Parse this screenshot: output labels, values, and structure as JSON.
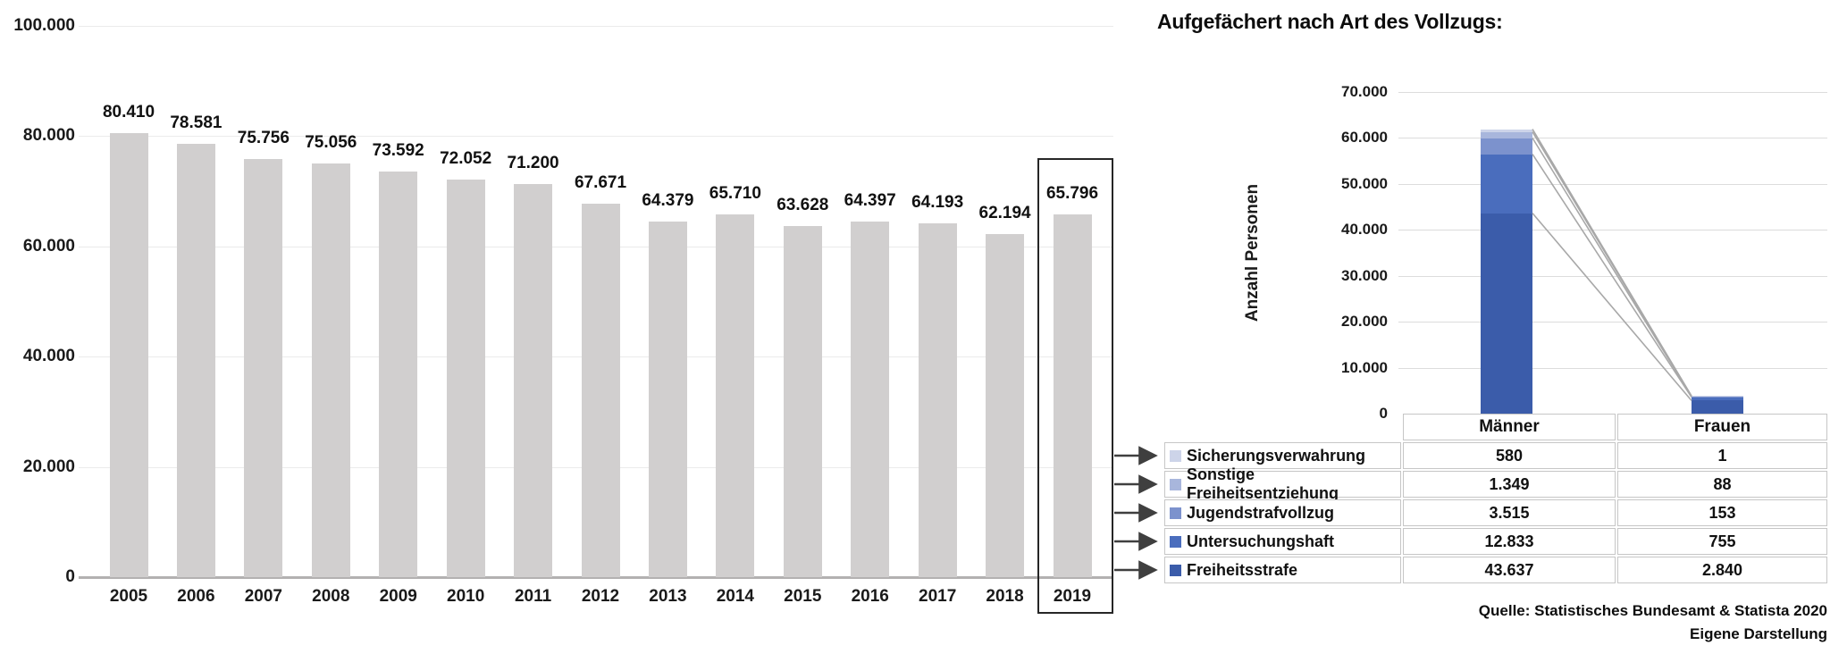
{
  "source": {
    "line1": "Quelle: Statistisches Bundesamt & Statista 2020",
    "line2": "Eigene Darstellung"
  },
  "chart_data": [
    {
      "type": "bar",
      "name": "gefangene-pro-jahr",
      "categories": [
        "2005",
        "2006",
        "2007",
        "2008",
        "2009",
        "2010",
        "2011",
        "2012",
        "2013",
        "2014",
        "2015",
        "2016",
        "2017",
        "2018",
        "2019"
      ],
      "values": [
        80410,
        78581,
        75756,
        75056,
        73592,
        72052,
        71200,
        67671,
        64379,
        65710,
        63628,
        64397,
        64193,
        62194,
        65796
      ],
      "value_labels": [
        "80.410",
        "78.581",
        "75.756",
        "75.056",
        "73.592",
        "72.052",
        "71.200",
        "67.671",
        "64.379",
        "65.710",
        "63.628",
        "64.397",
        "64.193",
        "62.194",
        "65.796"
      ],
      "ylim": [
        0,
        100000
      ],
      "yticks": [
        {
          "value": 100000,
          "label": "100.000"
        },
        {
          "value": 80000,
          "label": "80.000"
        },
        {
          "value": 60000,
          "label": "60.000"
        },
        {
          "value": 40000,
          "label": "40.000"
        },
        {
          "value": 20000,
          "label": "20.000"
        },
        {
          "value": 0,
          "label": "0"
        }
      ],
      "bar_color": "#d1cfcf",
      "grid": true,
      "highlight_category": "2019"
    },
    {
      "type": "stacked-bar",
      "title": "Aufgefächert nach Art des Vollzugs:",
      "ylabel": "Anzahl Personen",
      "categories": [
        "Männer",
        "Frauen"
      ],
      "ylim": [
        0,
        70000
      ],
      "yticks": [
        {
          "value": 70000,
          "label": "70.000"
        },
        {
          "value": 60000,
          "label": "60.000"
        },
        {
          "value": 50000,
          "label": "50.000"
        },
        {
          "value": 40000,
          "label": "40.000"
        },
        {
          "value": 30000,
          "label": "30.000"
        },
        {
          "value": 20000,
          "label": "20.000"
        },
        {
          "value": 10000,
          "label": "10.000"
        },
        {
          "value": 0,
          "label": "0"
        }
      ],
      "grid": true,
      "series": [
        {
          "name": "Freiheitsstrafe",
          "values": [
            43637,
            2840
          ],
          "labels": [
            "43.637",
            "2.840"
          ],
          "color": "#3b5caa"
        },
        {
          "name": "Untersuchungshaft",
          "values": [
            12833,
            755
          ],
          "labels": [
            "12.833",
            "755"
          ],
          "color": "#4a6dbd"
        },
        {
          "name": "Jugendstrafvollzug",
          "values": [
            3515,
            153
          ],
          "labels": [
            "3.515",
            "153"
          ],
          "color": "#7c92cd"
        },
        {
          "name": "Sonstige Freiheitsentziehung",
          "values": [
            1349,
            88
          ],
          "labels": [
            "1.349",
            "88"
          ],
          "color": "#a8b6dc"
        },
        {
          "name": "Sicherungsverwahrung",
          "values": [
            580,
            1
          ],
          "labels": [
            "580",
            "1"
          ],
          "color": "#cdd4e9"
        }
      ],
      "connector_line_color": "#a8a8a8"
    }
  ],
  "table": {
    "columns": [
      "",
      "Männer",
      "Frauen"
    ],
    "rows": [
      {
        "label": "Sicherungsverwahrung",
        "color": "#cdd4e9",
        "maenner": "580",
        "frauen": "1"
      },
      {
        "label": "Sonstige Freiheitsentziehung",
        "color": "#a8b6dc",
        "maenner": "1.349",
        "frauen": "88"
      },
      {
        "label": "Jugendstrafvollzug",
        "color": "#7c92cd",
        "maenner": "3.515",
        "frauen": "153"
      },
      {
        "label": "Untersuchungshaft",
        "color": "#4a6dbd",
        "maenner": "12.833",
        "frauen": "755"
      },
      {
        "label": "Freiheitsstrafe",
        "color": "#3b5caa",
        "maenner": "43.637",
        "frauen": "2.840"
      }
    ]
  },
  "annotations": {
    "highlight_year": "2019",
    "arrow_color": "#3f3f3f"
  }
}
